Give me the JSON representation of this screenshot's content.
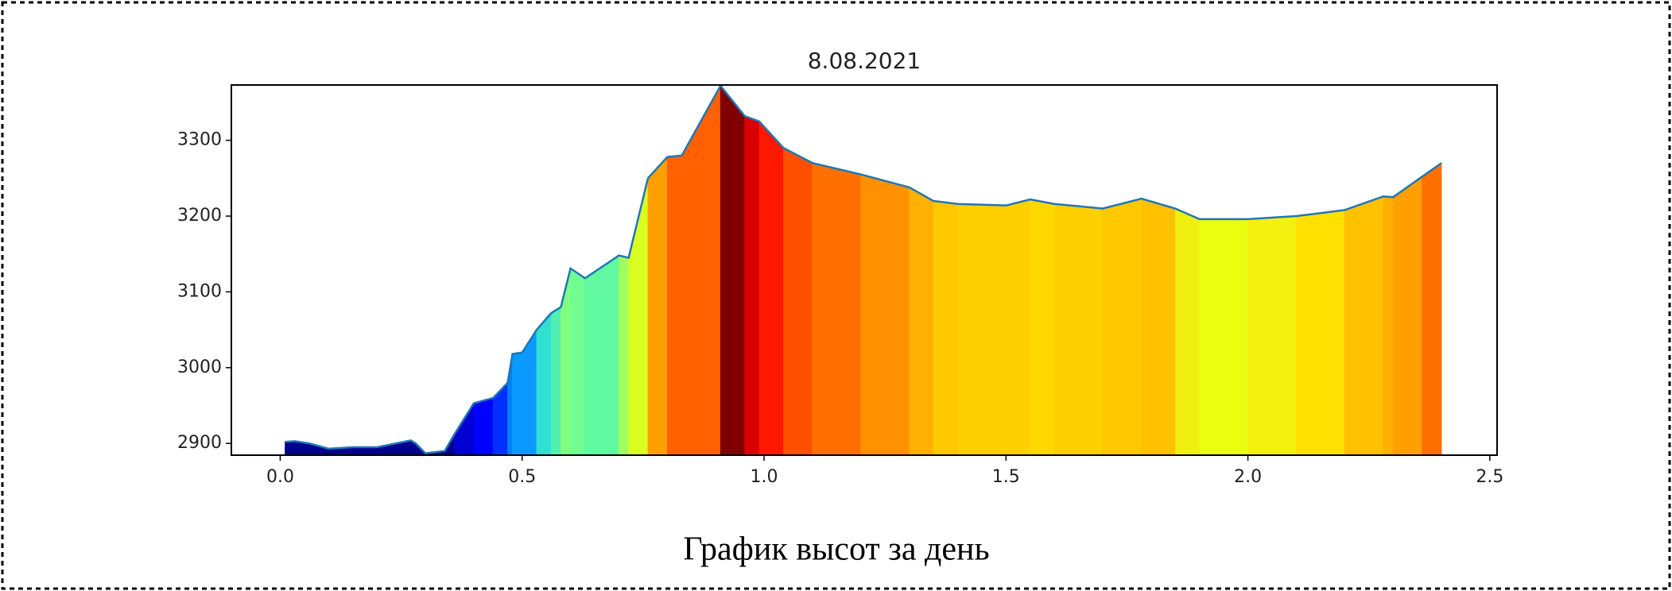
{
  "chart_data": {
    "type": "area",
    "title": "8.08.2021",
    "caption": "График высот за день",
    "x": [
      0.01,
      0.03,
      0.06,
      0.1,
      0.15,
      0.2,
      0.27,
      0.28,
      0.3,
      0.34,
      0.36,
      0.4,
      0.44,
      0.47,
      0.48,
      0.5,
      0.53,
      0.56,
      0.58,
      0.6,
      0.63,
      0.7,
      0.72,
      0.76,
      0.8,
      0.83,
      0.91,
      0.96,
      0.99,
      1.04,
      1.1,
      1.2,
      1.3,
      1.35,
      1.4,
      1.5,
      1.55,
      1.6,
      1.7,
      1.78,
      1.85,
      1.9,
      2.0,
      2.1,
      2.2,
      2.28,
      2.3,
      2.36,
      2.4
    ],
    "series": [
      {
        "color": "#1f77b4",
        "values": [
          2902,
          2903,
          2900,
          2893,
          2895,
          2895,
          2904,
          2900,
          2887,
          2890,
          2912,
          2953,
          2960,
          2980,
          3018,
          3020,
          3050,
          3072,
          3080,
          3131,
          3118,
          3148,
          3145,
          3250,
          3278,
          3280,
          3372,
          3332,
          3325,
          3290,
          3270,
          3255,
          3238,
          3220,
          3216,
          3214,
          3222,
          3216,
          3210,
          3223,
          3210,
          3196,
          3196,
          3200,
          3208,
          3226,
          3225,
          3252,
          3270
        ],
        "fill_colors": [
          "#00008f",
          "#00008f",
          "#00008f",
          "#00008f",
          "#00008f",
          "#00008f",
          "#00008f",
          "#00008f",
          "#00008f",
          "#00008f",
          "#0000d0",
          "#0000ff",
          "#0030ff",
          "#0080ff",
          "#0a9aff",
          "#0a9aff",
          "#30e0d0",
          "#50f0b0",
          "#80ff80",
          "#70ff90",
          "#60f8a0",
          "#a0ff60",
          "#d8ff20",
          "#ffa000",
          "#ff6000",
          "#ff6000",
          "#800000",
          "#d80000",
          "#ff1800",
          "#ff5000",
          "#ff7000",
          "#ff9000",
          "#ffb000",
          "#ffc800",
          "#ffd000",
          "#ffd000",
          "#ffd800",
          "#ffd000",
          "#ffc800",
          "#ffc000",
          "#f0f010",
          "#eaff10",
          "#f4f010",
          "#ffe000",
          "#ffc000",
          "#ffb000",
          "#ffa000",
          "#ff7000"
        ]
      }
    ],
    "xlim": [
      -0.101,
      2.515
    ],
    "ylim": [
      2884.5,
      3373
    ],
    "xticks": [
      {
        "value": 0,
        "label": "0.0"
      },
      0.5,
      {
        "value": 1,
        "label": "1.0"
      },
      1.5,
      {
        "value": 2,
        "label": "2.0"
      },
      2.5
    ],
    "yticks": [
      2900,
      3000,
      3100,
      3200,
      3300
    ]
  }
}
